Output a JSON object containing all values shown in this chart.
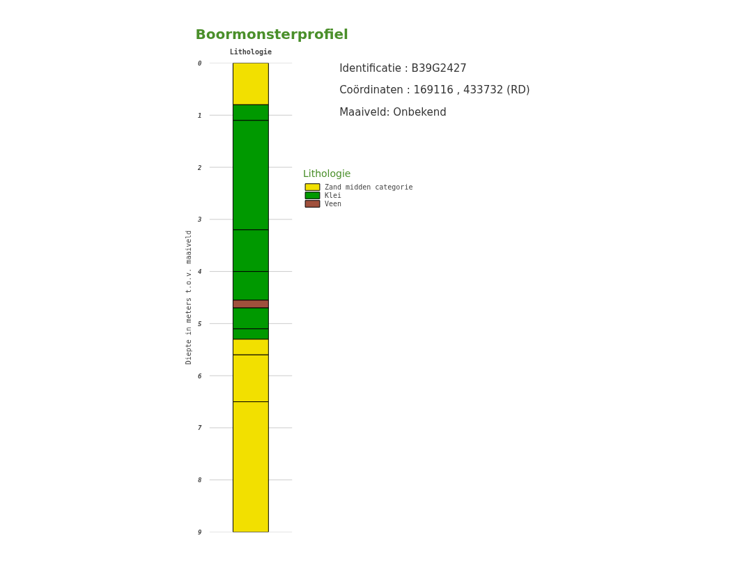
{
  "chart_data": {
    "type": "bar",
    "stacked": true,
    "title": "Boormonsterprofiel",
    "ylabel": "Diepte in meters t.o.v. maaiveld",
    "legend_title": "Lithologie",
    "legend": "right",
    "categories": [
      "Lithologie"
    ],
    "ylim": [
      9,
      0
    ],
    "yticks": [
      0,
      1,
      2,
      3,
      4,
      5,
      6,
      7,
      8,
      9
    ],
    "grid": "y",
    "series": [
      {
        "name": "Zand midden categorie",
        "color": "#f2e000",
        "values": [
          0.8
        ]
      },
      {
        "name": "Klei",
        "color": "#009900",
        "values": [
          0.3
        ]
      },
      {
        "color": "#009900",
        "values": [
          2.1
        ]
      },
      {
        "color": "#009900",
        "values": [
          0.8
        ]
      },
      {
        "color": "#009900",
        "values": [
          0.55
        ]
      },
      {
        "name": "Veen",
        "color": "#a0503c",
        "values": [
          0.15
        ]
      },
      {
        "color": "#009900",
        "values": [
          0.4
        ]
      },
      {
        "color": "#009900",
        "values": [
          0.2
        ]
      },
      {
        "color": "#f2e000",
        "values": [
          0.3
        ]
      },
      {
        "color": "#f2e000",
        "values": [
          0.9
        ]
      },
      {
        "color": "#f2e000",
        "values": [
          2.5
        ]
      }
    ],
    "annotations": [
      "Identificatie :  B39G2427",
      "Coördinaten :  169116 , 433732 (RD)",
      "Maaiveld:  Onbekend"
    ]
  }
}
